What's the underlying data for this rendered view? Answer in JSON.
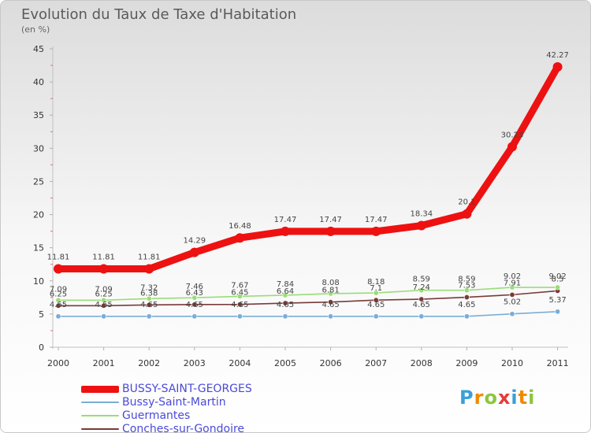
{
  "title": "Evolution du Taux de Taxe d'Habitation",
  "subtitle": "(en %)",
  "logo": {
    "letters": [
      "P",
      "r",
      "o",
      "x",
      "i",
      "t",
      "i"
    ],
    "colors": [
      "#3a9fd8",
      "#f08a00",
      "#8cc63f",
      "#e63a3a",
      "#3a9fd8",
      "#f08a00",
      "#8cc63f"
    ]
  },
  "chart_data": {
    "type": "line",
    "x": [
      "2000",
      "2001",
      "2002",
      "2003",
      "2004",
      "2005",
      "2006",
      "2007",
      "2008",
      "2009",
      "2010",
      "2011"
    ],
    "ylim": [
      0,
      45
    ],
    "yticks": [
      "0",
      "5",
      "10",
      "15",
      "20",
      "25",
      "30",
      "35",
      "40",
      "45"
    ],
    "grid": false,
    "legend_position": "bottom-left",
    "series": [
      {
        "name": "BUSSY-SAINT-GEORGES",
        "color": "#ee1111",
        "values": [
          11.81,
          11.81,
          11.81,
          14.29,
          16.48,
          17.47,
          17.47,
          17.47,
          18.34,
          20.1,
          30.23,
          42.27
        ],
        "labels": [
          "11.81",
          "11.81",
          "11.81",
          "14.29",
          "16.48",
          "17.47",
          "17.47",
          "17.47",
          "18.34",
          "20.1",
          "30.23",
          "42.27"
        ]
      },
      {
        "name": "Bussy-Saint-Martin",
        "color": "#7aaed6",
        "values": [
          4.65,
          4.65,
          4.65,
          4.65,
          4.65,
          4.65,
          4.65,
          4.65,
          4.65,
          4.65,
          5.02,
          5.37
        ],
        "labels": [
          "4.65",
          "4.65",
          "4.65",
          "4.65",
          "4.65",
          "4.65",
          "4.65",
          "4.65",
          "4.65",
          "4.65",
          "5.02",
          "5.37"
        ]
      },
      {
        "name": "Guermantes",
        "color": "#99dd77",
        "values": [
          7.09,
          7.09,
          7.32,
          7.46,
          7.67,
          7.84,
          8.08,
          8.18,
          8.59,
          8.59,
          9.02,
          9.02
        ],
        "labels": [
          "7.09",
          "7.09",
          "7.32",
          "7.46",
          "7.67",
          "7.84",
          "8.08",
          "8.18",
          "8.59",
          "8.59",
          "9.02",
          "9.02"
        ]
      },
      {
        "name": "Conches-sur-Gondoire",
        "color": "#7a3a3a",
        "values": [
          6.25,
          6.25,
          6.38,
          6.43,
          6.45,
          6.64,
          6.81,
          7.1,
          7.24,
          7.53,
          7.91,
          8.5
        ],
        "labels": [
          "6.25",
          "6.25",
          "6.38",
          "6.43",
          "6.45",
          "6.64",
          "6.81",
          "7.1",
          "7.24",
          "7.53",
          "7.91",
          "8.5"
        ]
      }
    ]
  }
}
